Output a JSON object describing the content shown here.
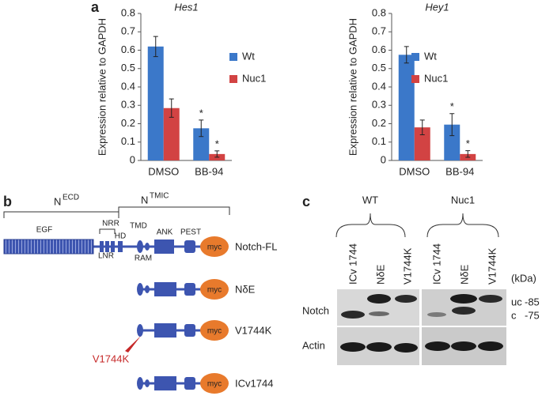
{
  "chart_data": [
    {
      "type": "bar",
      "panel": "a",
      "title": "Hes1",
      "ylabel": "Expression relative to GAPDH",
      "categories": [
        "DMSO",
        "BB-94"
      ],
      "series": [
        {
          "name": "Wt",
          "color": "#3b78c9",
          "values": [
            0.62,
            0.175
          ],
          "errors": [
            0.055,
            0.045
          ],
          "markers": [
            null,
            "*"
          ]
        },
        {
          "name": "Nuc1",
          "color": "#d24343",
          "values": [
            0.285,
            0.035
          ],
          "errors": [
            0.05,
            0.017
          ],
          "markers": [
            null,
            "*"
          ]
        }
      ],
      "ylim": [
        0,
        0.8
      ],
      "yticks": [
        0,
        0.1,
        0.2,
        0.3,
        0.4,
        0.5,
        0.6,
        0.7,
        0.8
      ],
      "grid": false
    },
    {
      "type": "bar",
      "title": "Hey1",
      "ylabel": "Expression relative to GAPDH",
      "categories": [
        "DMSO",
        "BB-94"
      ],
      "series": [
        {
          "name": "Wt",
          "color": "#3b78c9",
          "values": [
            0.575,
            0.195
          ],
          "errors": [
            0.045,
            0.06
          ],
          "markers": [
            null,
            "*"
          ]
        },
        {
          "name": "Nuc1",
          "color": "#d24343",
          "values": [
            0.18,
            0.035
          ],
          "errors": [
            0.04,
            0.018
          ],
          "markers": [
            null,
            "*"
          ]
        }
      ],
      "ylim": [
        0,
        0.8
      ],
      "yticks": [
        0,
        0.1,
        0.2,
        0.3,
        0.4,
        0.5,
        0.6,
        0.7,
        0.8
      ],
      "grid": false
    }
  ],
  "diagram": {
    "panel": "b",
    "ecd": {
      "main": "N",
      "sup": "ECD"
    },
    "tmic": {
      "main": "N",
      "sup": "TMIC"
    },
    "domains": {
      "egf": "EGF",
      "nrr": "NRR",
      "lnr": "LNR",
      "hd": "HD",
      "tmd": "TMD",
      "ram": "RAM",
      "ank": "ANK",
      "pest": "PEST",
      "myc": "myc"
    },
    "constructs": [
      "Notch-FL",
      "NδE",
      "V1744K",
      "ICv1744"
    ],
    "mutation": "V1744K"
  },
  "blot": {
    "panel": "c",
    "groups": [
      "WT",
      "Nuc1"
    ],
    "lanes": [
      "ICv 1744",
      "NδE",
      "V1744K"
    ],
    "unit": "(kDa)",
    "rows": [
      "Notch",
      "Actin"
    ],
    "forms": [
      "uc",
      "c"
    ],
    "sizes": [
      "-85",
      "-75"
    ]
  }
}
